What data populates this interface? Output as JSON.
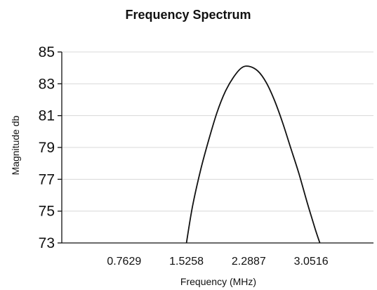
{
  "chart_data": {
    "type": "line",
    "title": "Frequency Spectrum",
    "xlabel": "Frequency (MHz)",
    "ylabel": "Magnitude db",
    "x_ticks": [
      "0.7629",
      "1.5258",
      "2.2887",
      "3.0516"
    ],
    "xlim": [
      0,
      3.815
    ],
    "ylim": [
      73,
      85
    ],
    "y_ticks": [
      73,
      75,
      77,
      79,
      81,
      83,
      85
    ],
    "grid": true,
    "legend": "none",
    "series": [
      {
        "x": [
          1.5258,
          1.6,
          1.7,
          1.8,
          1.9,
          2.0,
          2.1,
          2.2,
          2.2887,
          2.4,
          2.5,
          2.6,
          2.7,
          2.8,
          2.9,
          3.0,
          3.1,
          3.1585
        ],
        "y": [
          73.0,
          75.3,
          77.6,
          79.5,
          81.2,
          82.5,
          83.4,
          84.0,
          84.1,
          83.8,
          83.1,
          82.0,
          80.6,
          79.0,
          77.4,
          75.6,
          73.9,
          73.0
        ]
      }
    ],
    "colors": {
      "curve": "#111111",
      "axis": "#111111",
      "grid": "#d8d8d8"
    }
  }
}
